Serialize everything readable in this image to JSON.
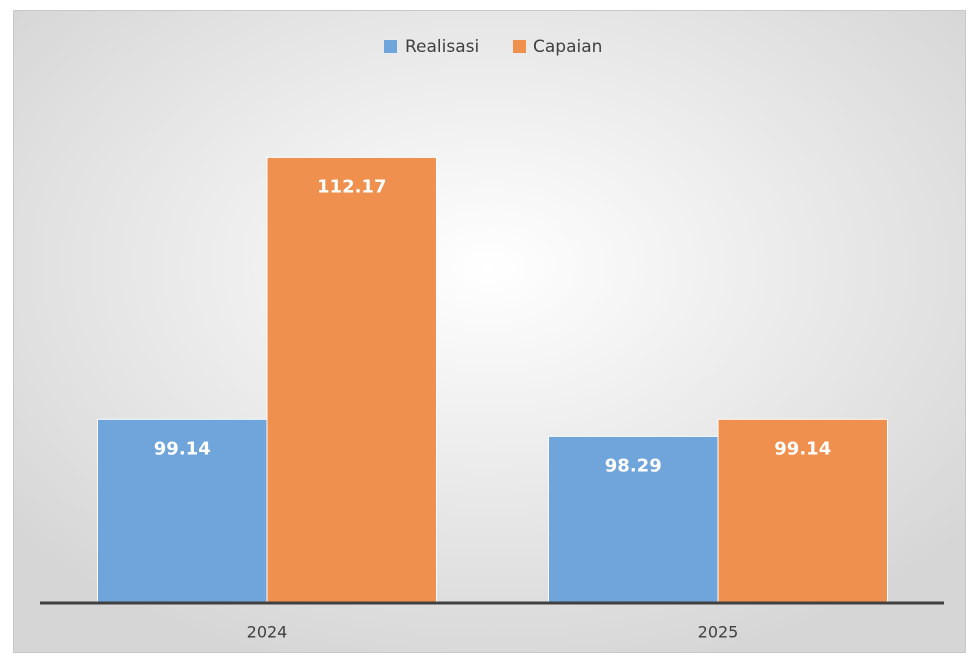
{
  "chart_data": {
    "type": "bar",
    "categories": [
      "2024",
      "2025"
    ],
    "series": [
      {
        "name": "Realisasi",
        "color": "#6fa5db",
        "values": [
          99.14,
          98.29
        ]
      },
      {
        "name": "Capaian",
        "color": "#f0904f",
        "values": [
          112.17,
          99.14
        ]
      }
    ],
    "ylim": [
      90,
      115
    ],
    "legend": "top"
  }
}
